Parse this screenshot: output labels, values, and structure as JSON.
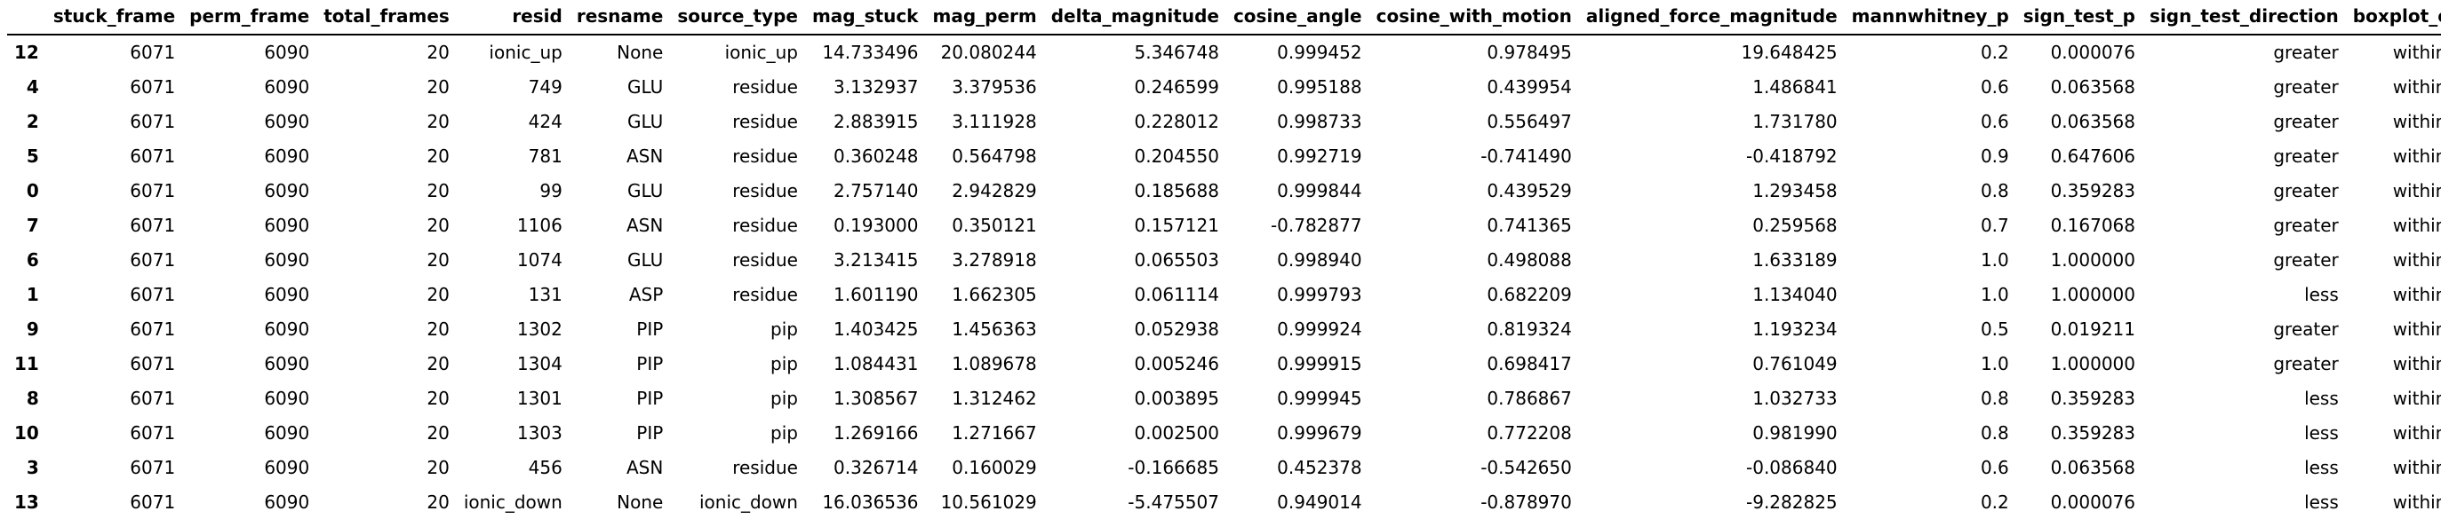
{
  "table": {
    "index_header": "",
    "columns": [
      "stuck_frame",
      "perm_frame",
      "total_frames",
      "resid",
      "resname",
      "source_type",
      "mag_stuck",
      "mag_perm",
      "delta_magnitude",
      "cosine_angle",
      "cosine_with_motion",
      "aligned_force_magnitude",
      "mannwhitney_p",
      "sign_test_p",
      "sign_test_direction",
      "boxplot_outlier"
    ],
    "rows": [
      {
        "index": "12",
        "cells": [
          "6071",
          "6090",
          "20",
          "ionic_up",
          "None",
          "ionic_up",
          "14.733496",
          "20.080244",
          "5.346748",
          "0.999452",
          "0.978495",
          "19.648425",
          "0.2",
          "0.000076",
          "greater",
          "within range"
        ]
      },
      {
        "index": "4",
        "cells": [
          "6071",
          "6090",
          "20",
          "749",
          "GLU",
          "residue",
          "3.132937",
          "3.379536",
          "0.246599",
          "0.995188",
          "0.439954",
          "1.486841",
          "0.6",
          "0.063568",
          "greater",
          "within range"
        ]
      },
      {
        "index": "2",
        "cells": [
          "6071",
          "6090",
          "20",
          "424",
          "GLU",
          "residue",
          "2.883915",
          "3.111928",
          "0.228012",
          "0.998733",
          "0.556497",
          "1.731780",
          "0.6",
          "0.063568",
          "greater",
          "within range"
        ]
      },
      {
        "index": "5",
        "cells": [
          "6071",
          "6090",
          "20",
          "781",
          "ASN",
          "residue",
          "0.360248",
          "0.564798",
          "0.204550",
          "0.992719",
          "-0.741490",
          "-0.418792",
          "0.9",
          "0.647606",
          "greater",
          "within range"
        ]
      },
      {
        "index": "0",
        "cells": [
          "6071",
          "6090",
          "20",
          "99",
          "GLU",
          "residue",
          "2.757140",
          "2.942829",
          "0.185688",
          "0.999844",
          "0.439529",
          "1.293458",
          "0.8",
          "0.359283",
          "greater",
          "within range"
        ]
      },
      {
        "index": "7",
        "cells": [
          "6071",
          "6090",
          "20",
          "1106",
          "ASN",
          "residue",
          "0.193000",
          "0.350121",
          "0.157121",
          "-0.782877",
          "0.741365",
          "0.259568",
          "0.7",
          "0.167068",
          "greater",
          "within range"
        ]
      },
      {
        "index": "6",
        "cells": [
          "6071",
          "6090",
          "20",
          "1074",
          "GLU",
          "residue",
          "3.213415",
          "3.278918",
          "0.065503",
          "0.998940",
          "0.498088",
          "1.633189",
          "1.0",
          "1.000000",
          "greater",
          "within range"
        ]
      },
      {
        "index": "1",
        "cells": [
          "6071",
          "6090",
          "20",
          "131",
          "ASP",
          "residue",
          "1.601190",
          "1.662305",
          "0.061114",
          "0.999793",
          "0.682209",
          "1.134040",
          "1.0",
          "1.000000",
          "less",
          "within range"
        ]
      },
      {
        "index": "9",
        "cells": [
          "6071",
          "6090",
          "20",
          "1302",
          "PIP",
          "pip",
          "1.403425",
          "1.456363",
          "0.052938",
          "0.999924",
          "0.819324",
          "1.193234",
          "0.5",
          "0.019211",
          "greater",
          "within range"
        ]
      },
      {
        "index": "11",
        "cells": [
          "6071",
          "6090",
          "20",
          "1304",
          "PIP",
          "pip",
          "1.084431",
          "1.089678",
          "0.005246",
          "0.999915",
          "0.698417",
          "0.761049",
          "1.0",
          "1.000000",
          "greater",
          "within range"
        ]
      },
      {
        "index": "8",
        "cells": [
          "6071",
          "6090",
          "20",
          "1301",
          "PIP",
          "pip",
          "1.308567",
          "1.312462",
          "0.003895",
          "0.999945",
          "0.786867",
          "1.032733",
          "0.8",
          "0.359283",
          "less",
          "within range"
        ]
      },
      {
        "index": "10",
        "cells": [
          "6071",
          "6090",
          "20",
          "1303",
          "PIP",
          "pip",
          "1.269166",
          "1.271667",
          "0.002500",
          "0.999679",
          "0.772208",
          "0.981990",
          "0.8",
          "0.359283",
          "less",
          "within range"
        ]
      },
      {
        "index": "3",
        "cells": [
          "6071",
          "6090",
          "20",
          "456",
          "ASN",
          "residue",
          "0.326714",
          "0.160029",
          "-0.166685",
          "0.452378",
          "-0.542650",
          "-0.086840",
          "0.6",
          "0.063568",
          "less",
          "within range"
        ]
      },
      {
        "index": "13",
        "cells": [
          "6071",
          "6090",
          "20",
          "ionic_down",
          "None",
          "ionic_down",
          "16.036536",
          "10.561029",
          "-5.475507",
          "0.949014",
          "-0.878970",
          "-9.282825",
          "0.2",
          "0.000076",
          "less",
          "within range"
        ]
      }
    ]
  }
}
